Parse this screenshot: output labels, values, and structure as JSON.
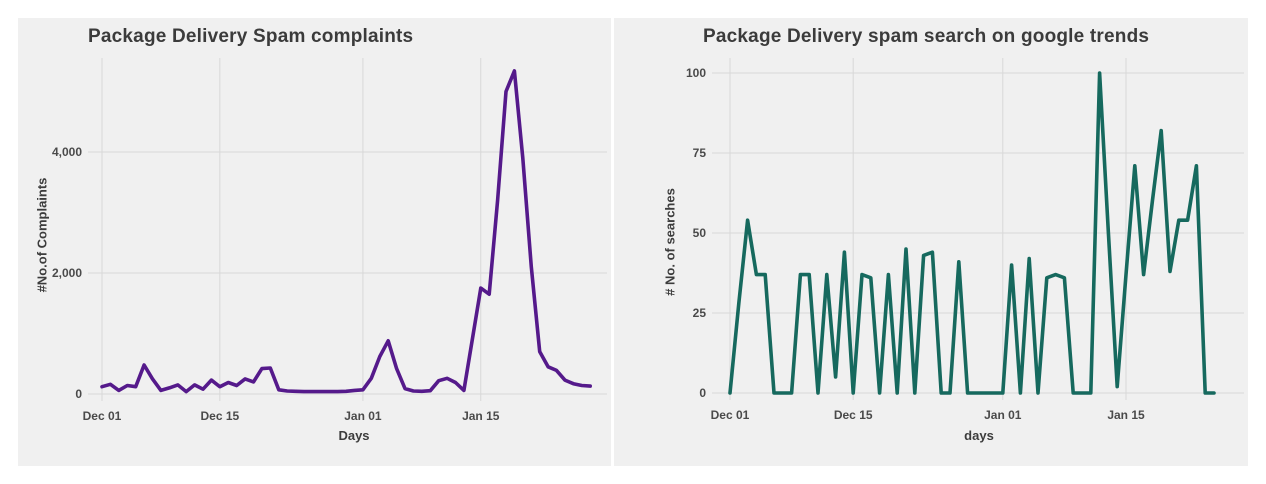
{
  "page_background": "#ffffff",
  "chart_data": [
    {
      "type": "line",
      "title": "Package Delivery Spam complaints",
      "xlabel": "Days",
      "ylabel": "#No.of Complaints",
      "line_color": "#551a8b",
      "panel_background": "#f0f0f0",
      "grid_color": "#d8d8d8",
      "grid": true,
      "legend": "none",
      "ylim": [
        0,
        5550
      ],
      "yticks": [
        {
          "value": 0,
          "label": "0"
        },
        {
          "value": 2000,
          "label": "2,000"
        },
        {
          "value": 4000,
          "label": "4,000"
        }
      ],
      "xticks": [
        {
          "day": 0,
          "label": "Dec 01"
        },
        {
          "day": 14,
          "label": "Dec 15"
        },
        {
          "day": 31,
          "label": "Jan 01"
        },
        {
          "day": 45,
          "label": "Jan 15"
        }
      ],
      "x": [
        "Dec 01",
        "Dec 02",
        "Dec 03",
        "Dec 04",
        "Dec 05",
        "Dec 06",
        "Dec 07",
        "Dec 08",
        "Dec 09",
        "Dec 10",
        "Dec 11",
        "Dec 12",
        "Dec 13",
        "Dec 14",
        "Dec 15",
        "Dec 16",
        "Dec 17",
        "Dec 18",
        "Dec 19",
        "Dec 20",
        "Dec 21",
        "Dec 22",
        "Dec 23",
        "Dec 24",
        "Dec 25",
        "Dec 26",
        "Dec 27",
        "Dec 28",
        "Dec 29",
        "Dec 30",
        "Dec 31",
        "Jan 01",
        "Jan 02",
        "Jan 03",
        "Jan 04",
        "Jan 05",
        "Jan 06",
        "Jan 07",
        "Jan 08",
        "Jan 09",
        "Jan 10",
        "Jan 11",
        "Jan 12",
        "Jan 13",
        "Jan 14",
        "Jan 15",
        "Jan 16",
        "Jan 17",
        "Jan 18",
        "Jan 19",
        "Jan 20",
        "Jan 21",
        "Jan 22",
        "Jan 23",
        "Jan 24",
        "Jan 25",
        "Jan 26",
        "Jan 27",
        "Jan 28"
      ],
      "values": [
        120,
        160,
        60,
        140,
        120,
        480,
        250,
        60,
        100,
        150,
        40,
        150,
        80,
        230,
        120,
        190,
        140,
        250,
        200,
        420,
        430,
        70,
        50,
        45,
        40,
        40,
        40,
        40,
        40,
        45,
        60,
        70,
        260,
        620,
        880,
        420,
        90,
        50,
        45,
        55,
        220,
        260,
        190,
        60,
        900,
        1750,
        1650,
        3200,
        5000,
        5340,
        3900,
        2100,
        700,
        450,
        390,
        230,
        170,
        140,
        130
      ]
    },
    {
      "type": "line",
      "title": "Package Delivery spam search on google trends",
      "xlabel": "days",
      "ylabel": "# No. of searches",
      "line_color": "#16695e",
      "panel_background": "#f0f0f0",
      "grid_color": "#d8d8d8",
      "grid": true,
      "legend": "none",
      "ylim": [
        0,
        105
      ],
      "yticks": [
        {
          "value": 0,
          "label": "0"
        },
        {
          "value": 25,
          "label": "25"
        },
        {
          "value": 50,
          "label": "50"
        },
        {
          "value": 75,
          "label": "75"
        },
        {
          "value": 100,
          "label": "100"
        }
      ],
      "xticks": [
        {
          "day": 0,
          "label": "Dec 01"
        },
        {
          "day": 14,
          "label": "Dec 15"
        },
        {
          "day": 31,
          "label": "Jan 01"
        },
        {
          "day": 45,
          "label": "Jan 15"
        }
      ],
      "x": [
        "Dec 01",
        "Dec 02",
        "Dec 03",
        "Dec 04",
        "Dec 05",
        "Dec 06",
        "Dec 07",
        "Dec 08",
        "Dec 09",
        "Dec 10",
        "Dec 11",
        "Dec 12",
        "Dec 13",
        "Dec 14",
        "Dec 15",
        "Dec 16",
        "Dec 17",
        "Dec 18",
        "Dec 19",
        "Dec 20",
        "Dec 21",
        "Dec 22",
        "Dec 23",
        "Dec 24",
        "Dec 25",
        "Dec 26",
        "Dec 27",
        "Dec 28",
        "Dec 29",
        "Dec 30",
        "Dec 31",
        "Jan 01",
        "Jan 02",
        "Jan 03",
        "Jan 04",
        "Jan 05",
        "Jan 06",
        "Jan 07",
        "Jan 08",
        "Jan 09",
        "Jan 10",
        "Jan 11",
        "Jan 12",
        "Jan 13",
        "Jan 14",
        "Jan 15",
        "Jan 16",
        "Jan 17",
        "Jan 18",
        "Jan 19",
        "Jan 20",
        "Jan 21",
        "Jan 22",
        "Jan 23",
        "Jan 24",
        "Jan 25"
      ],
      "values": [
        0,
        28,
        54,
        37,
        37,
        0,
        0,
        0,
        37,
        37,
        0,
        37,
        5,
        44,
        0,
        37,
        36,
        0,
        37,
        0,
        45,
        0,
        43,
        44,
        0,
        0,
        41,
        0,
        0,
        0,
        0,
        0,
        40,
        0,
        42,
        0,
        36,
        37,
        36,
        0,
        0,
        0,
        100,
        50,
        2,
        37,
        71,
        37,
        60,
        82,
        38,
        54,
        54,
        71,
        0,
        0
      ]
    }
  ]
}
